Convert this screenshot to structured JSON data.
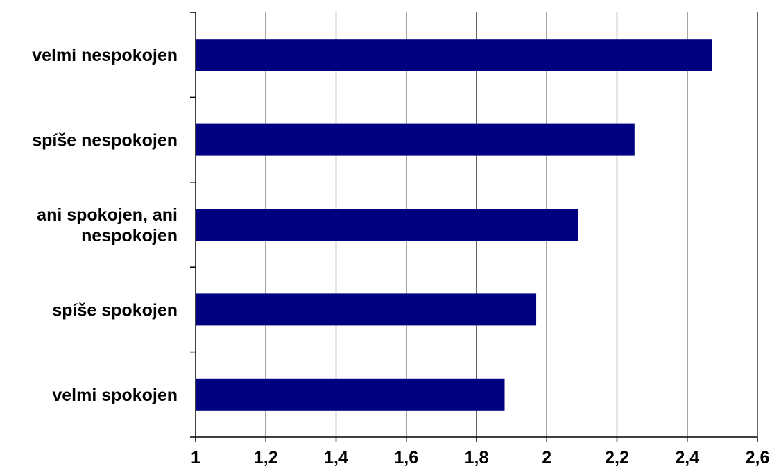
{
  "chart_data": {
    "type": "bar",
    "orientation": "horizontal",
    "categories": [
      "velmi nespokojen",
      "spíše nespokojen",
      "ani spokojen, ani nespokojen",
      "spíše spokojen",
      "velmi spokojen"
    ],
    "category_label_lines": [
      [
        "velmi nespokojen"
      ],
      [
        "spíše nespokojen"
      ],
      [
        "ani spokojen, ani",
        "nespokojen"
      ],
      [
        "spíše spokojen"
      ],
      [
        "velmi spokojen"
      ]
    ],
    "values": [
      2.47,
      2.25,
      2.09,
      1.97,
      1.88
    ],
    "xlim": [
      1,
      2.6
    ],
    "xticks": [
      1,
      1.2,
      1.4,
      1.6,
      1.8,
      2,
      2.2,
      2.4,
      2.6
    ],
    "xtick_labels": [
      "1",
      "1,2",
      "1,4",
      "1,6",
      "1,8",
      "2",
      "2,2",
      "2,4",
      "2,6"
    ],
    "title": "",
    "xlabel": "",
    "ylabel": "",
    "grid": "vertical",
    "legend": "none",
    "bar_color": "#000080"
  }
}
